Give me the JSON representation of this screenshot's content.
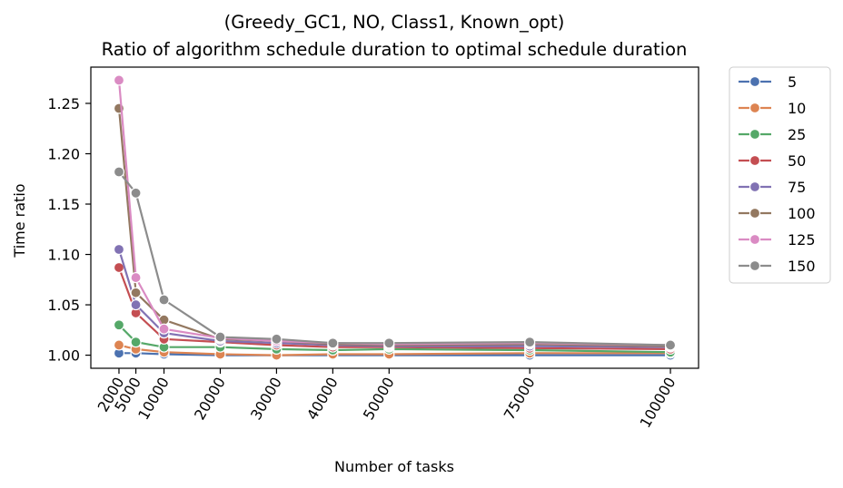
{
  "chart_data": {
    "type": "line",
    "title": "(Greedy_GC1, NO, Class1, Known_opt)",
    "subtitle": "Ratio of algorithm schedule duration to optimal schedule duration",
    "xlabel": "Number of tasks",
    "ylabel": "Time ratio",
    "x": [
      2000,
      5000,
      10000,
      20000,
      30000,
      40000,
      50000,
      75000,
      100000
    ],
    "x_tick_labels": [
      "2000",
      "5000",
      "10000",
      "20000",
      "30000",
      "40000",
      "50000",
      "75000",
      "100000"
    ],
    "y_ticks": [
      1.0,
      1.05,
      1.1,
      1.15,
      1.2,
      1.25
    ],
    "y_tick_labels": [
      "1.00",
      "1.05",
      "1.10",
      "1.15",
      "1.20",
      "1.25"
    ],
    "xlim": [
      -3000,
      105000
    ],
    "ylim": [
      0.987,
      1.286
    ],
    "grid": false,
    "legend_placement": "outside-right-top",
    "series": [
      {
        "name": "5",
        "color": "#4c72b0",
        "values": [
          1.002,
          1.002,
          1.001,
          1.0,
          1.0,
          1.0,
          1.0,
          1.0,
          1.0
        ]
      },
      {
        "name": "10",
        "color": "#dd8452",
        "values": [
          1.01,
          1.006,
          1.003,
          1.001,
          1.0,
          1.001,
          1.001,
          1.002,
          1.002
        ]
      },
      {
        "name": "25",
        "color": "#55a868",
        "values": [
          1.03,
          1.013,
          1.008,
          1.008,
          1.006,
          1.005,
          1.006,
          1.005,
          1.003
        ]
      },
      {
        "name": "50",
        "color": "#c44e52",
        "values": [
          1.087,
          1.042,
          1.016,
          1.013,
          1.01,
          1.008,
          1.008,
          1.007,
          1.006
        ]
      },
      {
        "name": "75",
        "color": "#8172b3",
        "values": [
          1.105,
          1.05,
          1.022,
          1.014,
          1.012,
          1.01,
          1.009,
          1.009,
          1.008
        ]
      },
      {
        "name": "100",
        "color": "#937860",
        "values": [
          1.245,
          1.062,
          1.035,
          1.016,
          1.014,
          1.011,
          1.01,
          1.011,
          1.009
        ]
      },
      {
        "name": "125",
        "color": "#da8bc3",
        "values": [
          1.273,
          1.077,
          1.026,
          1.017,
          1.014,
          1.012,
          1.011,
          1.012,
          1.01
        ]
      },
      {
        "name": "150",
        "color": "#8c8c8c",
        "values": [
          1.182,
          1.161,
          1.055,
          1.018,
          1.016,
          1.012,
          1.012,
          1.013,
          1.01
        ]
      }
    ]
  }
}
